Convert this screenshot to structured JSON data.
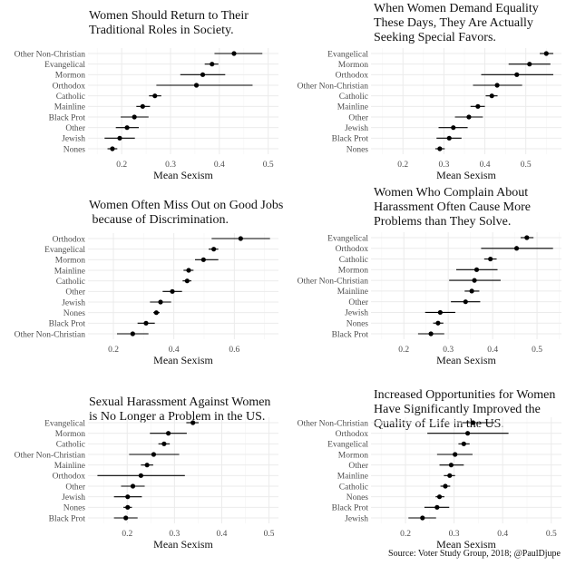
{
  "source": "Source: Voter Study Group, 2018; @PaulDjupe",
  "colors": {
    "point": "#000000",
    "grid": "#ebebeb",
    "grid_minor": "#f5f5f5",
    "label": "#4d4d4d"
  },
  "chart_data": [
    {
      "type": "dot-and-whisker",
      "title": "Women Should Return to Their\nTraditional Roles in Society.",
      "xlabel": "Mean Sexism",
      "xlim": [
        0.131,
        0.521
      ],
      "xticks": [
        "0.2",
        "0.3",
        "0.4",
        "0.5"
      ],
      "grid": true,
      "categories": [
        "Other Non-Christian",
        "Evangelical",
        "Mormon",
        "Orthodox",
        "Catholic",
        "Mainline",
        "Black Prot",
        "Other",
        "Jewish",
        "Nones"
      ],
      "values": [
        0.43,
        0.385,
        0.366,
        0.353,
        0.268,
        0.243,
        0.226,
        0.211,
        0.196,
        0.181
      ],
      "lower": [
        0.39,
        0.37,
        0.32,
        0.271,
        0.256,
        0.23,
        0.198,
        0.188,
        0.165,
        0.171
      ],
      "upper": [
        0.488,
        0.398,
        0.412,
        0.468,
        0.281,
        0.258,
        0.255,
        0.235,
        0.227,
        0.191
      ]
    },
    {
      "type": "dot-and-whisker",
      "title": "When Women Demand Equality\nThese Days, They Are Actually\nSeeking Special Favors.",
      "xlabel": "Mean Sexism",
      "xlim": [
        0.122,
        0.587
      ],
      "xticks": [
        "0.2",
        "0.3",
        "0.4",
        "0.5"
      ],
      "grid": true,
      "categories": [
        "Evangelical",
        "Mormon",
        "Orthodox",
        "Other Non-Christian",
        "Catholic",
        "Mainline",
        "Other",
        "Jewish",
        "Black Prot",
        "Nones"
      ],
      "values": [
        0.55,
        0.509,
        0.478,
        0.43,
        0.417,
        0.383,
        0.361,
        0.323,
        0.313,
        0.29
      ],
      "lower": [
        0.534,
        0.458,
        0.391,
        0.371,
        0.402,
        0.365,
        0.327,
        0.287,
        0.282,
        0.279
      ],
      "upper": [
        0.567,
        0.56,
        0.567,
        0.491,
        0.431,
        0.4,
        0.395,
        0.358,
        0.343,
        0.302
      ]
    },
    {
      "type": "dot-and-whisker",
      "title": "Women Often Miss Out on Good Jobs\n because of Discrimination.",
      "xlabel": "Mean Sexism",
      "xlim": [
        0.116,
        0.746
      ],
      "xticks": [
        "0.2",
        "0.4",
        "0.6"
      ],
      "grid": true,
      "categories": [
        "Orthodox",
        "Evangelical",
        "Mormon",
        "Mainline",
        "Catholic",
        "Other",
        "Jewish",
        "Nones",
        "Black Prot",
        "Other Non-Christian"
      ],
      "values": [
        0.621,
        0.532,
        0.498,
        0.449,
        0.444,
        0.395,
        0.356,
        0.342,
        0.308,
        0.264
      ],
      "lower": [
        0.525,
        0.515,
        0.47,
        0.432,
        0.429,
        0.363,
        0.321,
        0.332,
        0.28,
        0.212
      ],
      "upper": [
        0.718,
        0.547,
        0.547,
        0.465,
        0.458,
        0.427,
        0.391,
        0.353,
        0.337,
        0.316
      ]
    },
    {
      "type": "dot-and-whisker",
      "title": "Women Who Complain About\nHarassment Often Cause More\nProblems than They Solve.",
      "xlabel": "Mean Sexism",
      "xlim": [
        0.126,
        0.555
      ],
      "xticks": [
        "0.2",
        "0.3",
        "0.4",
        "0.5"
      ],
      "grid": true,
      "categories": [
        "Evangelical",
        "Orthodox",
        "Catholic",
        "Mormon",
        "Other Non-Christian",
        "Mainline",
        "Other",
        "Jewish",
        "Nones",
        "Black Prot"
      ],
      "values": [
        0.477,
        0.454,
        0.395,
        0.364,
        0.359,
        0.353,
        0.339,
        0.282,
        0.277,
        0.261
      ],
      "lower": [
        0.463,
        0.374,
        0.381,
        0.318,
        0.302,
        0.337,
        0.306,
        0.248,
        0.266,
        0.232
      ],
      "upper": [
        0.492,
        0.536,
        0.409,
        0.411,
        0.418,
        0.37,
        0.372,
        0.316,
        0.289,
        0.291
      ]
    },
    {
      "type": "dot-and-whisker",
      "title": "Sexual Harassment Against Women\nis No Longer a Problem in the US.",
      "xlabel": "Mean Sexism",
      "xlim": [
        0.117,
        0.52
      ],
      "xticks": [
        "0.2",
        "0.3",
        "0.4",
        "0.5"
      ],
      "grid": true,
      "categories": [
        "Evangelical",
        "Mormon",
        "Catholic",
        "Other Non-Christian",
        "Mainline",
        "Orthodox",
        "Other",
        "Jewish",
        "Nones",
        "Black Prot"
      ],
      "values": [
        0.339,
        0.287,
        0.278,
        0.256,
        0.242,
        0.229,
        0.212,
        0.201,
        0.201,
        0.197
      ],
      "lower": [
        0.325,
        0.248,
        0.266,
        0.204,
        0.229,
        0.137,
        0.187,
        0.172,
        0.192,
        0.172
      ],
      "upper": [
        0.351,
        0.326,
        0.29,
        0.31,
        0.255,
        0.322,
        0.237,
        0.231,
        0.21,
        0.222
      ]
    },
    {
      "type": "dot-and-whisker",
      "title": "Increased Opportunities for Women\nHave Significantly Improved the\nQuality of Life in the US.",
      "xlabel": "Mean Sexism",
      "xlim": [
        0.129,
        0.521
      ],
      "xticks": [
        "0.2",
        "0.3",
        "0.4",
        "0.5"
      ],
      "grid": true,
      "categories": [
        "Other Non-Christian",
        "Orthodox",
        "Evangelical",
        "Mormon",
        "Other",
        "Mainline",
        "Catholic",
        "Nones",
        "Black Prot",
        "Jewish"
      ],
      "values": [
        0.339,
        0.328,
        0.32,
        0.302,
        0.294,
        0.291,
        0.282,
        0.27,
        0.265,
        0.235
      ],
      "lower": [
        0.317,
        0.245,
        0.309,
        0.265,
        0.27,
        0.279,
        0.272,
        0.262,
        0.239,
        0.206
      ],
      "upper": [
        0.383,
        0.412,
        0.332,
        0.338,
        0.32,
        0.302,
        0.292,
        0.28,
        0.29,
        0.263
      ]
    }
  ]
}
